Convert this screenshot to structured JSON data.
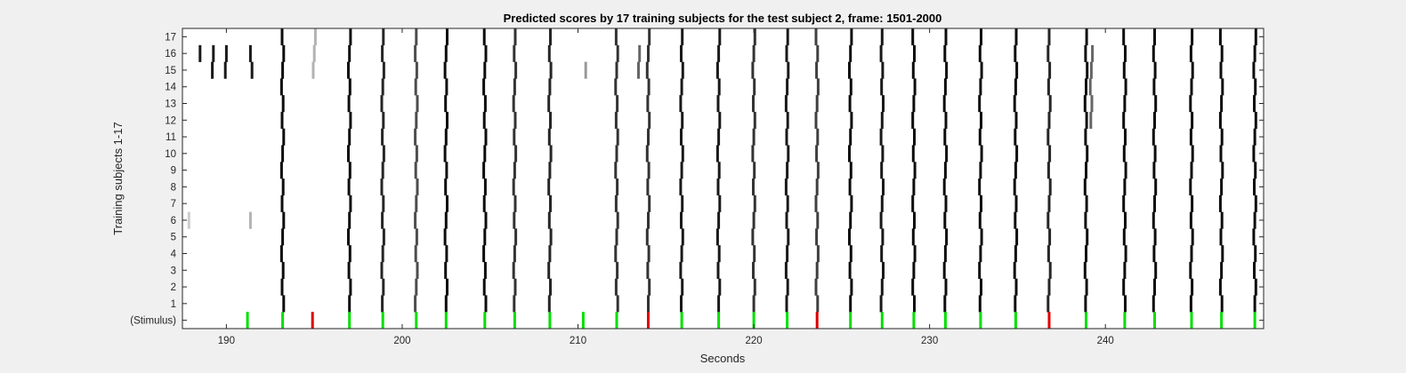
{
  "chart_data": {
    "type": "heatmap",
    "title": "Predicted scores by 17 training subjects for the test subject 2, frame: 1501-2000",
    "xlabel": "Seconds",
    "ylabel": "Training subjects 1-17",
    "xlim": [
      187.5,
      249
    ],
    "x_ticks": [
      190,
      200,
      210,
      220,
      230,
      240
    ],
    "y_tick_labels": [
      "(Stimulus)",
      "1",
      "2",
      "3",
      "4",
      "5",
      "6",
      "7",
      "8",
      "9",
      "10",
      "11",
      "12",
      "13",
      "14",
      "15",
      "16",
      "17"
    ],
    "colors": {
      "background": "#ffffff",
      "high_score": "#000000",
      "correct_stimulus": "#00e000",
      "wrong_stimulus": "#e00000",
      "figure": "#f0f0f0"
    },
    "stimulus_events": [
      {
        "x": 191.2,
        "correct": true
      },
      {
        "x": 193.2,
        "correct": true
      },
      {
        "x": 194.9,
        "correct": false
      },
      {
        "x": 197.0,
        "correct": true
      },
      {
        "x": 198.9,
        "correct": true
      },
      {
        "x": 200.8,
        "correct": true
      },
      {
        "x": 202.5,
        "correct": true
      },
      {
        "x": 204.7,
        "correct": true
      },
      {
        "x": 206.4,
        "correct": true
      },
      {
        "x": 208.4,
        "correct": true
      },
      {
        "x": 210.3,
        "correct": true
      },
      {
        "x": 212.2,
        "correct": true
      },
      {
        "x": 214.0,
        "correct": false
      },
      {
        "x": 215.9,
        "correct": true
      },
      {
        "x": 218.0,
        "correct": true
      },
      {
        "x": 220.0,
        "correct": true
      },
      {
        "x": 221.9,
        "correct": true
      },
      {
        "x": 223.6,
        "correct": false
      },
      {
        "x": 225.5,
        "correct": true
      },
      {
        "x": 227.3,
        "correct": true
      },
      {
        "x": 229.1,
        "correct": true
      },
      {
        "x": 230.9,
        "correct": true
      },
      {
        "x": 232.9,
        "correct": true
      },
      {
        "x": 234.9,
        "correct": true
      },
      {
        "x": 236.8,
        "correct": false
      },
      {
        "x": 238.9,
        "correct": true
      },
      {
        "x": 241.1,
        "correct": true
      },
      {
        "x": 242.8,
        "correct": true
      },
      {
        "x": 244.9,
        "correct": true
      },
      {
        "x": 246.6,
        "correct": true
      },
      {
        "x": 248.5,
        "correct": true
      }
    ],
    "subject_responses": [
      {
        "x": 193.2,
        "rows": "1-17",
        "score": 0.95
      },
      {
        "x": 197.0,
        "rows": "1-17",
        "score": 0.95
      },
      {
        "x": 198.9,
        "rows": "1-17",
        "score": 0.85
      },
      {
        "x": 200.8,
        "rows": "1-17",
        "score": 0.7
      },
      {
        "x": 202.5,
        "rows": "1-17",
        "score": 0.95
      },
      {
        "x": 204.7,
        "rows": "1-17",
        "score": 0.95
      },
      {
        "x": 206.4,
        "rows": "1-17",
        "score": 0.8
      },
      {
        "x": 208.4,
        "rows": "1-17",
        "score": 0.85
      },
      {
        "x": 212.2,
        "rows": "1-17",
        "score": 0.8
      },
      {
        "x": 214.0,
        "rows": "1-17",
        "score": 0.8
      },
      {
        "x": 215.9,
        "rows": "1-17",
        "score": 0.9
      },
      {
        "x": 218.0,
        "rows": "1-17",
        "score": 0.9
      },
      {
        "x": 220.0,
        "rows": "1-17",
        "score": 0.8
      },
      {
        "x": 221.9,
        "rows": "1-17",
        "score": 0.9
      },
      {
        "x": 223.6,
        "rows": "1-17",
        "score": 0.75
      },
      {
        "x": 225.5,
        "rows": "1-17",
        "score": 0.95
      },
      {
        "x": 227.3,
        "rows": "1-17",
        "score": 0.9
      },
      {
        "x": 229.1,
        "rows": "1-17",
        "score": 0.95
      },
      {
        "x": 230.9,
        "rows": "1-17",
        "score": 0.95
      },
      {
        "x": 232.9,
        "rows": "1-17",
        "score": 0.95
      },
      {
        "x": 234.9,
        "rows": "1-17",
        "score": 0.95
      },
      {
        "x": 236.8,
        "rows": "1-17",
        "score": 0.85
      },
      {
        "x": 238.9,
        "rows": "1-17",
        "score": 0.95
      },
      {
        "x": 241.1,
        "rows": "1-17",
        "score": 0.95
      },
      {
        "x": 242.8,
        "rows": "1-17",
        "score": 0.95
      },
      {
        "x": 244.9,
        "rows": "1-17",
        "score": 0.95
      },
      {
        "x": 246.6,
        "rows": "1-17",
        "score": 0.95
      },
      {
        "x": 248.5,
        "rows": "1-17",
        "score": 0.95
      },
      {
        "x": 188.5,
        "rows": "16",
        "score": 0.9
      },
      {
        "x": 189.2,
        "rows": "15-16",
        "score": 0.9
      },
      {
        "x": 190.0,
        "rows": "15-16",
        "score": 0.9
      },
      {
        "x": 191.4,
        "rows": "15-16",
        "score": 0.9
      },
      {
        "x": 195.0,
        "rows": "15-17",
        "score": 0.3
      },
      {
        "x": 210.5,
        "rows": "15",
        "score": 0.4
      },
      {
        "x": 213.5,
        "rows": "15-16",
        "score": 0.6
      },
      {
        "x": 239.2,
        "rows": "12-16",
        "score": 0.6
      },
      {
        "x": 187.9,
        "rows": "6",
        "score": 0.2
      },
      {
        "x": 191.4,
        "rows": "6",
        "score": 0.3
      }
    ]
  }
}
